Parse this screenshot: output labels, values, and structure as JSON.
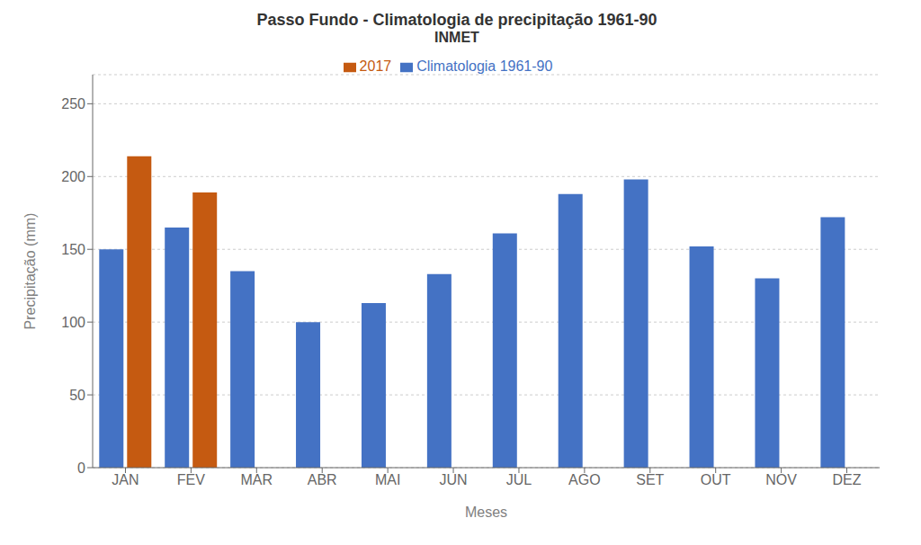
{
  "chart_data": {
    "type": "bar",
    "title": "Passo Fundo - Climatologia de precipitação 1961-90",
    "subtitle": "INMET",
    "xlabel": "Meses",
    "ylabel": "Precipitação (mm)",
    "categories": [
      "JAN",
      "FEV",
      "MAR",
      "ABR",
      "MAI",
      "JUN",
      "JUL",
      "AGO",
      "SET",
      "OUT",
      "NOV",
      "DEZ"
    ],
    "series": [
      {
        "name": "Climatologia 1961-90",
        "color": "#4472C4",
        "values": [
          150,
          165,
          135,
          100,
          113,
          133,
          161,
          188,
          198,
          152,
          130,
          172
        ]
      },
      {
        "name": "2017",
        "color": "#C55A11",
        "values": [
          214,
          189,
          null,
          null,
          null,
          null,
          null,
          null,
          null,
          null,
          null,
          null
        ]
      }
    ],
    "ylim": [
      0,
      270
    ],
    "yticks": [
      0,
      50,
      100,
      150,
      200,
      250
    ],
    "grid": true,
    "legend": "top"
  }
}
